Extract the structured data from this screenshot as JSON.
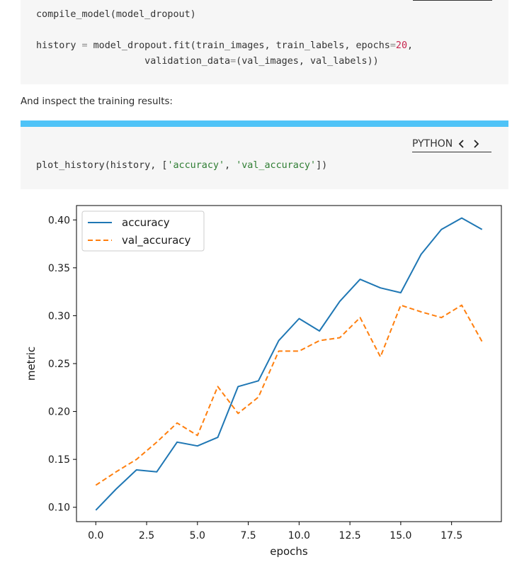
{
  "code_block_1": {
    "line1": "compile_model(model_dropout)",
    "line2": {
      "a": "history",
      "eq": " = ",
      "b": "model_dropout.fit(train_images, train_labels, epochs",
      "eq2": "=",
      "num": "20",
      "c": ","
    },
    "line3": {
      "a": "                   validation_data",
      "eq": "=",
      "b": "(val_images, val_labels))"
    }
  },
  "prose": {
    "text": "And inspect the training results:"
  },
  "code_block_2": {
    "language_label": "PYTHON",
    "prev_icon": "chevron-left-icon",
    "next_icon": "chevron-right-icon",
    "line1": {
      "a": "plot_history(history, [",
      "s1": "'accuracy'",
      "sep": ", ",
      "s2": "'val_accuracy'",
      "b": "])"
    }
  },
  "colors": {
    "accent": "#4fc3f7",
    "series_accuracy": "#1f77b4",
    "series_val_accuracy": "#ff7f0e",
    "code_bg": "#f6f6f6"
  },
  "chart_data": {
    "type": "line",
    "xlabel": "epochs",
    "ylabel": "metric",
    "xlim": [
      -0.95,
      19.95
    ],
    "ylim": [
      0.085,
      0.415
    ],
    "x_ticks": [
      0.0,
      2.5,
      5.0,
      7.5,
      10.0,
      12.5,
      15.0,
      17.5
    ],
    "x_tick_labels": [
      "0.0",
      "2.5",
      "5.0",
      "7.5",
      "10.0",
      "12.5",
      "15.0",
      "17.5"
    ],
    "y_ticks": [
      0.1,
      0.15,
      0.2,
      0.25,
      0.3,
      0.35,
      0.4
    ],
    "y_tick_labels": [
      "0.10",
      "0.15",
      "0.20",
      "0.25",
      "0.30",
      "0.35",
      "0.40"
    ],
    "legend_position": "top-left",
    "grid": false,
    "x": [
      0,
      1,
      2,
      3,
      4,
      5,
      6,
      7,
      8,
      9,
      10,
      11,
      12,
      13,
      14,
      15,
      16,
      17,
      18,
      19
    ],
    "series": [
      {
        "name": "accuracy",
        "style": "solid",
        "values": [
          0.097,
          0.119,
          0.139,
          0.137,
          0.168,
          0.164,
          0.173,
          0.226,
          0.232,
          0.274,
          0.297,
          0.284,
          0.315,
          0.338,
          0.329,
          0.324,
          0.364,
          0.39,
          0.402,
          0.39
        ]
      },
      {
        "name": "val_accuracy",
        "style": "dashed",
        "values": [
          0.123,
          0.137,
          0.15,
          0.168,
          0.188,
          0.175,
          0.226,
          0.198,
          0.215,
          0.263,
          0.263,
          0.274,
          0.277,
          0.298,
          0.257,
          0.311,
          0.304,
          0.298,
          0.311,
          0.273
        ]
      }
    ]
  }
}
